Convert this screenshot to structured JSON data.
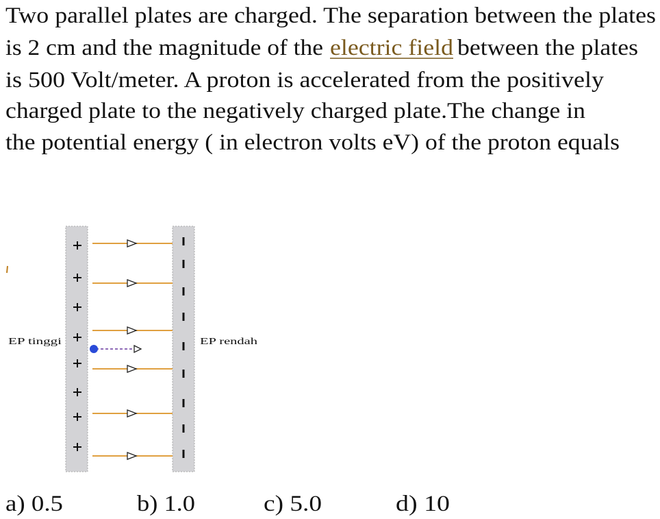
{
  "question": {
    "lines": [
      [
        "Two parallel plates are charged. The separation between the plates"
      ],
      [
        "is 2 cm and the magnitude of the",
        "electric field",
        "between the plates"
      ],
      [
        "is 500 Volt/meter. A proton is accelerated from the positively"
      ],
      [
        "charged plate to the negatively charged plate.The change in"
      ],
      [
        "the potential energy ( in electron volts eV) of the proton equals"
      ]
    ]
  },
  "diagram": {
    "left_label": "EP tinggi",
    "right_label": "EP rendah"
  },
  "options": [
    "a) 0.5",
    "b) 1.0",
    "c) 5.0",
    "d) 10"
  ]
}
